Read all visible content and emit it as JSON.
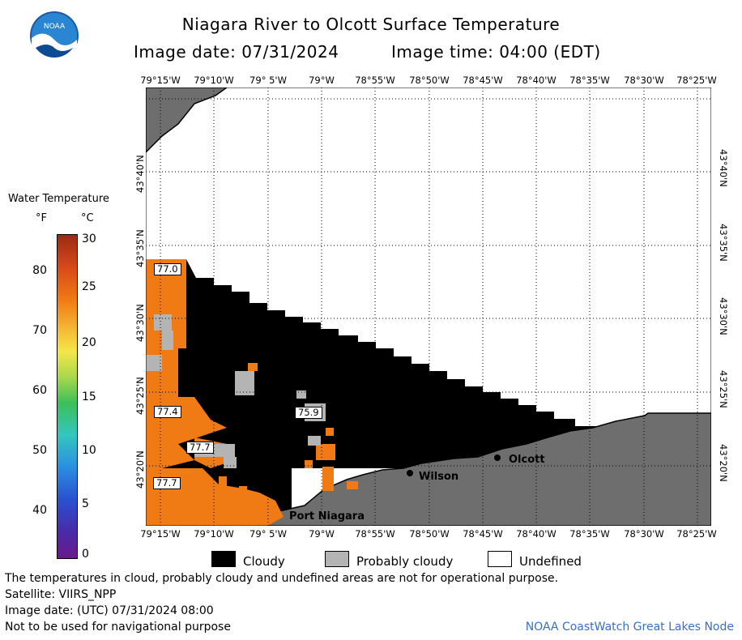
{
  "title": {
    "line1": "Niagara River to Olcott Surface Temperature",
    "image_date_label": "Image date: 07/31/2024",
    "image_time_label": "Image time: 04:00 (EDT)"
  },
  "logo": {
    "text": "NOAA"
  },
  "map": {
    "lon_labels": [
      "79°15'W",
      "79°10'W",
      "79° 5'W",
      "79°W",
      "78°55'W",
      "78°50'W",
      "78°45'W",
      "78°40'W",
      "78°35'W",
      "78°30'W",
      "78°25'W"
    ],
    "lat_labels": [
      "43°40'N",
      "43°35'N",
      "43°30'N",
      "43°25'N",
      "43°20'N"
    ],
    "temperature_labels": [
      {
        "value": "77.0"
      },
      {
        "value": "77.4"
      },
      {
        "value": "77.7"
      },
      {
        "value": "77.7"
      },
      {
        "value": "75.9"
      }
    ],
    "places": [
      "Olcott",
      "Wilson",
      "Port Niagara"
    ],
    "colors": {
      "land": "#6e6e6e",
      "cloud": "#000000",
      "water_warm": "#f07a14",
      "probably_cloudy": "#b4b4b4",
      "undefined": "#ffffff"
    }
  },
  "colorbar": {
    "title": "Water Temperature",
    "unit_f": "°F",
    "unit_c": "°C",
    "f_ticks": [
      "80",
      "70",
      "60",
      "50",
      "40"
    ],
    "c_ticks": [
      "30",
      "25",
      "20",
      "15",
      "10",
      "5",
      "0"
    ]
  },
  "legend": {
    "cloudy": "Cloudy",
    "probably_cloudy": "Probably cloudy",
    "undefined": "Undefined"
  },
  "footer": {
    "disclaimer": "The temperatures in cloud, probably cloudy and undefined areas are not for operational purpose.",
    "satellite": "Satellite: VIIRS_NPP",
    "utc_date": "Image date: (UTC) 07/31/2024  08:00",
    "nav_warning": "Not to be used for navigational purpose",
    "credit": "NOAA CoastWatch Great Lakes Node"
  }
}
